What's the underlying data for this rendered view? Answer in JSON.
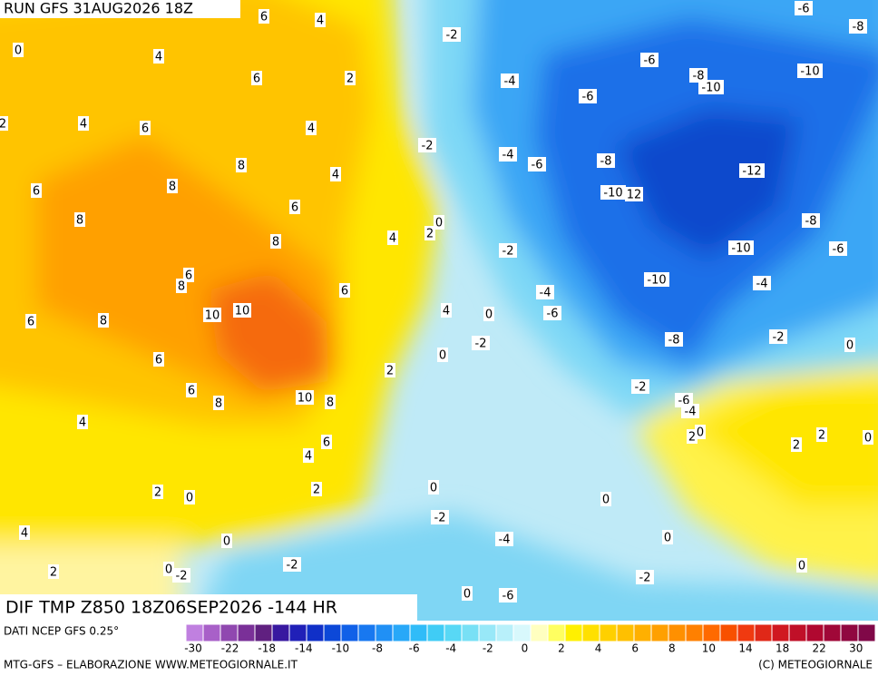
{
  "header": {
    "run": "RUN GFS 31AUG2026 18Z",
    "title": "DIF TMP Z850 18Z06SEP2026 -144 HR"
  },
  "contour_labels": [
    6,
    4,
    -6,
    -8,
    0,
    -2,
    4,
    6,
    2,
    -6,
    -8,
    -10,
    -10,
    -4,
    -6,
    4,
    6,
    4,
    -2,
    -4,
    -6,
    -8,
    -12,
    8,
    4,
    6,
    8,
    -10,
    12,
    6,
    8,
    0,
    2,
    4,
    -8,
    8,
    -2,
    -10,
    -6,
    6,
    8,
    6,
    -10,
    -4,
    -4,
    10,
    10,
    -6,
    0,
    4,
    6,
    8,
    -2,
    -8,
    -2,
    0,
    6,
    0,
    2,
    6,
    8,
    10,
    8,
    -2,
    -6,
    -4,
    4,
    6,
    2,
    0,
    2,
    2,
    0,
    4,
    2,
    2,
    0,
    0,
    0,
    -2,
    4,
    0,
    -4,
    0,
    -2,
    0,
    -2,
    2,
    0,
    -2,
    0,
    -6,
    2
  ],
  "legend": {
    "source": "DATI NCEP GFS 0.25°",
    "colors": [
      "#c080e0",
      "#a860c8",
      "#9048b0",
      "#7a3098",
      "#602080",
      "#3818a0",
      "#2020b8",
      "#1030c8",
      "#0c48d8",
      "#1060e8",
      "#1878f0",
      "#2090f5",
      "#28a8f8",
      "#30bcf8",
      "#40ccf5",
      "#58d8f5",
      "#78e0f5",
      "#98e8f8",
      "#b8f0fa",
      "#d8f8fc",
      "#ffffc0",
      "#ffff60",
      "#fff000",
      "#ffe000",
      "#ffd000",
      "#ffc000",
      "#ffb000",
      "#ffa000",
      "#ff9000",
      "#ff8000",
      "#ff6a00",
      "#f85000",
      "#f03a10",
      "#e02818",
      "#d01820",
      "#c01028",
      "#b00830",
      "#a00838",
      "#900840",
      "#800848"
    ],
    "ticks": [
      -30,
      -22,
      -18,
      -14,
      -10,
      -8,
      -6,
      -4,
      -2,
      0,
      2,
      4,
      6,
      8,
      10,
      14,
      18,
      22,
      30
    ]
  },
  "footer": {
    "credit": "MTG-GFS – ELABORAZIONE WWW.METEOGIORNALE.IT",
    "copyright": "(C) METEOGIORNALE"
  }
}
